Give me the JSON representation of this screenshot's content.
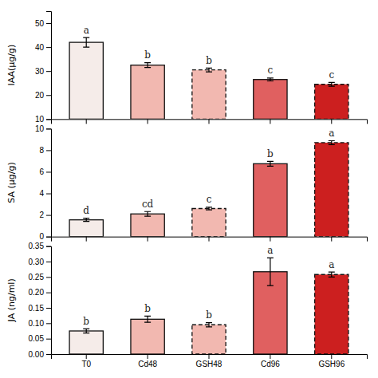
{
  "chart_data": [
    {
      "type": "bar",
      "categories": [
        "T0",
        "Cd48",
        "GSH48",
        "Cd96",
        "GSH96"
      ],
      "values": [
        42,
        32.5,
        30.5,
        26.5,
        24.5
      ],
      "errors": [
        2.0,
        1.0,
        0.8,
        0.6,
        0.8
      ],
      "annotations": [
        "a",
        "b",
        "b",
        "c",
        "c"
      ],
      "ylabel": "IAA(μg/g)",
      "ylim": [
        10,
        55
      ],
      "yticks": [
        10,
        20,
        30,
        40,
        50
      ],
      "colors": [
        "#f5ece9",
        "#f2b8b0",
        "#f2b8b0",
        "#e06060",
        "#cc1f1f"
      ],
      "grid": false,
      "tick_labels": "y"
    },
    {
      "type": "bar",
      "categories": [
        "T0",
        "Cd48",
        "GSH48",
        "Cd96",
        "GSH96"
      ],
      "values": [
        1.55,
        2.1,
        2.6,
        6.75,
        8.7
      ],
      "errors": [
        0.15,
        0.22,
        0.12,
        0.22,
        0.18
      ],
      "annotations": [
        "d",
        "cd",
        "c",
        "b",
        "a"
      ],
      "ylabel": "SA (μg/g)",
      "ylim": [
        0,
        10
      ],
      "yticks": [
        0,
        2,
        4,
        6,
        8,
        10
      ],
      "colors": [
        "#f5ece9",
        "#f2b8b0",
        "#f2b8b0",
        "#e06060",
        "#cc1f1f"
      ],
      "grid": false,
      "tick_labels": "y"
    },
    {
      "type": "bar",
      "categories": [
        "T0",
        "Cd48",
        "GSH48",
        "Cd96",
        "GSH96"
      ],
      "values": [
        0.075,
        0.113,
        0.095,
        0.267,
        0.258
      ],
      "errors": [
        0.007,
        0.01,
        0.007,
        0.045,
        0.008
      ],
      "annotations": [
        "b",
        "b",
        "b",
        "a",
        "a"
      ],
      "ylabel": "JA (ng/ml)",
      "ylim": [
        0,
        0.35
      ],
      "yticks": [
        {
          "value": 0,
          "label": "0.00"
        },
        {
          "value": 0.05,
          "label": "0.05"
        },
        {
          "value": 0.1,
          "label": "0.10"
        },
        {
          "value": 0.15,
          "label": "0.15"
        },
        {
          "value": 0.2,
          "label": "0.20"
        },
        {
          "value": 0.25,
          "label": "0.25"
        },
        {
          "value": 0.3,
          "label": "0.30"
        },
        {
          "value": 0.35,
          "label": "0.35"
        }
      ],
      "colors": [
        "#f5ece9",
        "#f2b8b0",
        "#f2b8b0",
        "#e06060",
        "#cc1f1f"
      ],
      "grid": false
    }
  ]
}
